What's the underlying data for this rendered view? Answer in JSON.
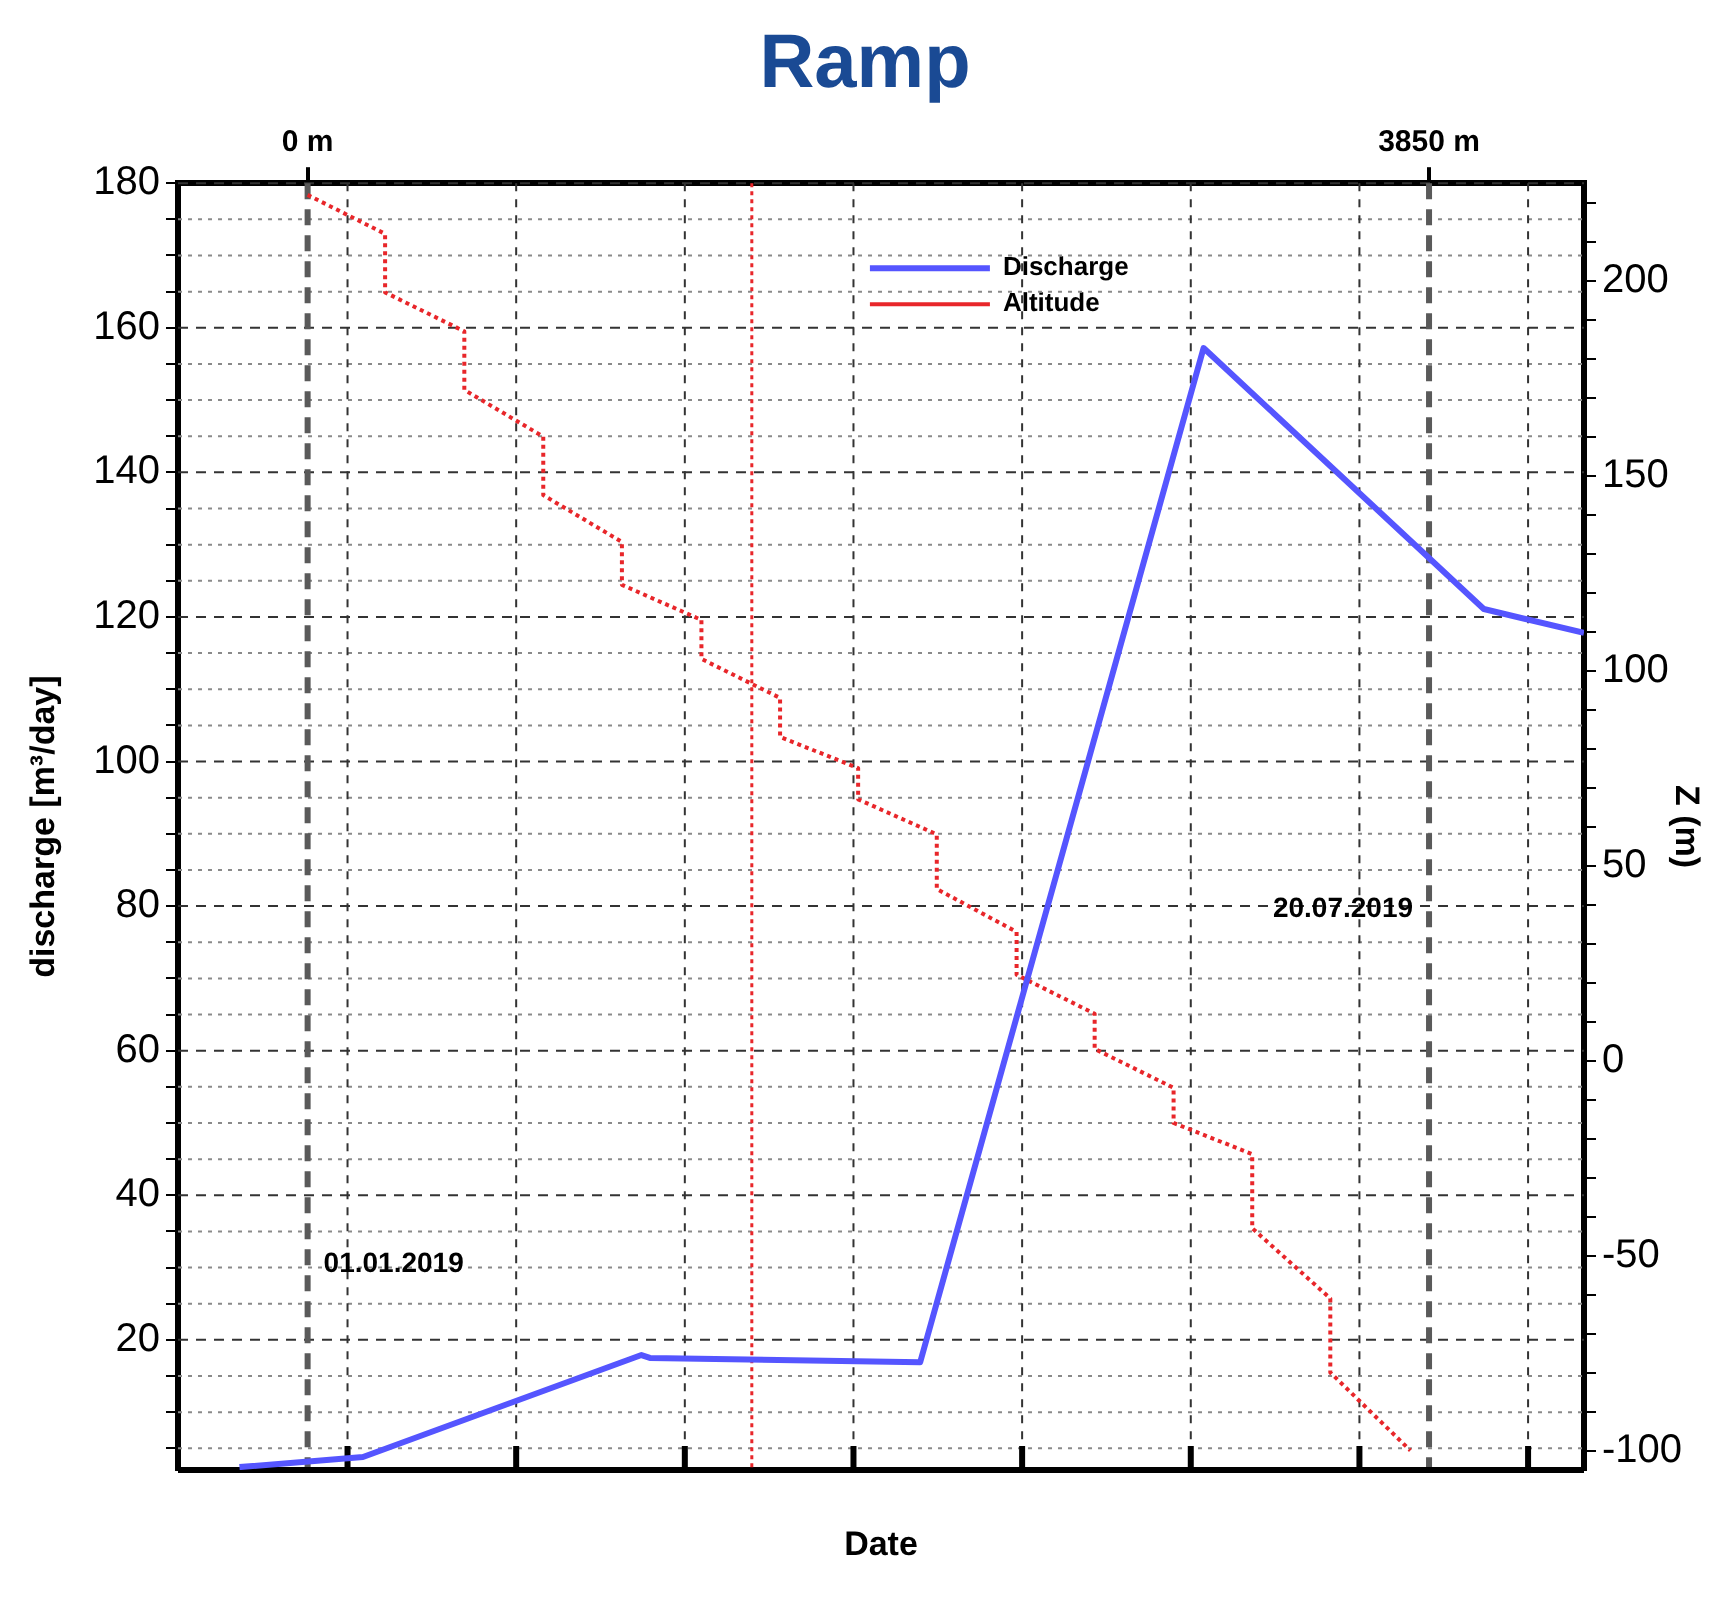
{
  "chart_data": {
    "type": "line",
    "title": "Ramp",
    "xlabel": "Date",
    "ylabel": "discharge [m³/day]",
    "y2label": "Z (m)",
    "series": [
      {
        "name": "Discharge",
        "color": "#5555ff",
        "line_style": "solid",
        "x": [
          -234,
          190,
          1146,
          1175,
          2103,
          3076,
          4038,
          4382
        ],
        "values": [
          2.4,
          3.8,
          17.9,
          17.5,
          16.9,
          157.2,
          121.1,
          117.8
        ]
      },
      {
        "name": "Altitude",
        "color": "#e8262a",
        "line_style": "dotted",
        "axis": "y2",
        "x": [
          0,
          266,
          266,
          538,
          538,
          809,
          809,
          1079,
          1079,
          1352,
          1352,
          1622,
          1622,
          1890,
          1890,
          2160,
          2160,
          2434,
          2434,
          2702,
          2702,
          2973,
          2973,
          3243,
          3243,
          3511,
          3511,
          3786
        ],
        "values": [
          222,
          212,
          197,
          187,
          172,
          160,
          145,
          133,
          122,
          113,
          103,
          93,
          83,
          75,
          67,
          58,
          44,
          33,
          22,
          12,
          3,
          -7,
          -16,
          -24,
          -43,
          -61,
          -80,
          -100
        ]
      }
    ],
    "xlim": [
      -445,
      4382
    ],
    "xticks": [
      {
        "value": 0,
        "label": "0 m"
      },
      {
        "value": 137,
        "label": null
      },
      {
        "value": 716,
        "label": null
      },
      {
        "value": 1295,
        "label": null
      },
      {
        "value": 1874,
        "label": null
      },
      {
        "value": 2453,
        "label": null
      },
      {
        "value": 3032,
        "label": null
      },
      {
        "value": 3611,
        "label": null
      },
      {
        "value": 3850,
        "label": "3850 m"
      },
      {
        "value": 4190,
        "label": null
      }
    ],
    "ylim": [
      2,
      180
    ],
    "yticks": [
      {
        "value": 5,
        "label": null
      },
      {
        "value": 10,
        "label": null
      },
      {
        "value": 15,
        "label": null
      },
      20,
      {
        "value": 25,
        "label": null
      },
      {
        "value": 30,
        "label": null
      },
      {
        "value": 35,
        "label": null
      },
      40,
      {
        "value": 45,
        "label": null
      },
      {
        "value": 50,
        "label": null
      },
      {
        "value": 55,
        "label": null
      },
      60,
      {
        "value": 65,
        "label": null
      },
      {
        "value": 70,
        "label": null
      },
      {
        "value": 75,
        "label": null
      },
      80,
      {
        "value": 85,
        "label": null
      },
      {
        "value": 90,
        "label": null
      },
      {
        "value": 95,
        "label": null
      },
      100,
      {
        "value": 105,
        "label": null
      },
      {
        "value": 110,
        "label": null
      },
      {
        "value": 115,
        "label": null
      },
      120,
      {
        "value": 125,
        "label": null
      },
      {
        "value": 130,
        "label": null
      },
      {
        "value": 135,
        "label": null
      },
      140,
      {
        "value": 145,
        "label": null
      },
      {
        "value": 150,
        "label": null
      },
      {
        "value": 155,
        "label": null
      },
      160,
      {
        "value": 165,
        "label": null
      },
      {
        "value": 170,
        "label": null
      },
      {
        "value": 175,
        "label": null
      },
      180
    ],
    "y2lim": [
      -105,
      225
    ],
    "y2ticks": [
      -100,
      {
        "value": -90,
        "label": null
      },
      {
        "value": -80,
        "label": null
      },
      {
        "value": -70,
        "label": null
      },
      {
        "value": -60,
        "label": null
      },
      -50,
      {
        "value": -40,
        "label": null
      },
      {
        "value": -30,
        "label": null
      },
      {
        "value": -20,
        "label": null
      },
      {
        "value": -10,
        "label": null
      },
      0,
      {
        "value": 10,
        "label": null
      },
      {
        "value": 20,
        "label": null
      },
      {
        "value": 30,
        "label": null
      },
      {
        "value": 40,
        "label": null
      },
      50,
      {
        "value": 60,
        "label": null
      },
      {
        "value": 70,
        "label": null
      },
      {
        "value": 80,
        "label": null
      },
      {
        "value": 90,
        "label": null
      },
      100,
      {
        "value": 110,
        "label": null
      },
      {
        "value": 120,
        "label": null
      },
      {
        "value": 130,
        "label": null
      },
      {
        "value": 140,
        "label": null
      },
      150,
      {
        "value": 160,
        "label": null
      },
      {
        "value": 170,
        "label": null
      },
      {
        "value": 180,
        "label": null
      },
      {
        "value": 190,
        "label": null
      },
      200,
      {
        "value": 210,
        "label": null
      },
      {
        "value": 220,
        "label": null
      }
    ],
    "annotations": [
      "01.01.2019",
      "20.07.2019"
    ],
    "ref_lines": [
      {
        "axis": "x",
        "value": 1525,
        "color": "#e8262a",
        "line_style": "dotted"
      }
    ],
    "grid": true,
    "legend": "top",
    "marker": "none"
  }
}
